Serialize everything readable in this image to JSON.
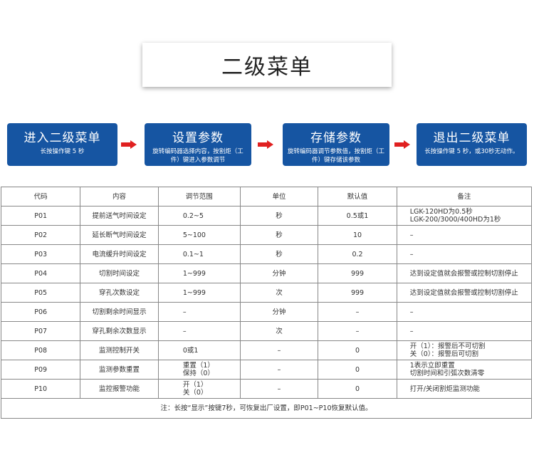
{
  "title": "二级菜单",
  "steps": [
    {
      "title": "进入二级菜单",
      "desc": "长按操作键 5 秒"
    },
    {
      "title": "设置参数",
      "desc": "旋转编码器选择内容，按割炬（工件）键进入参数调节"
    },
    {
      "title": "存储参数",
      "desc": "旋转编码器调节参数值，按割炬（工件）键存储该参数"
    },
    {
      "title": "退出二级菜单",
      "desc": "长按操作键 5 秒，或30秒无动作。"
    }
  ],
  "arrow_color": "#e02020",
  "table": {
    "headers": [
      "代码",
      "内容",
      "调节范围",
      "单位",
      "默认值",
      "备注"
    ],
    "rows": [
      [
        "P01",
        "提前送气时间设定",
        "0.2~5",
        "秒",
        "0.5或1",
        "LGK-120HD为0.5秒\nLGK-200/3000/400HD为1秒"
      ],
      [
        "P02",
        "延长断气时间设定",
        "5~100",
        "秒",
        "10",
        "–"
      ],
      [
        "P03",
        "电流缓升时间设定",
        "0.1~1",
        "秒",
        "0.2",
        "–"
      ],
      [
        "P04",
        "切割时间设定",
        "1~999",
        "分钟",
        "999",
        "达到设定值就会报警或控制切割停止"
      ],
      [
        "P05",
        "穿孔次数设定",
        "1~999",
        "次",
        "999",
        "达到设定值就会报警或控制切割停止"
      ],
      [
        "P06",
        "切割剩余时间显示",
        "–",
        "分钟",
        "–",
        "–"
      ],
      [
        "P07",
        "穿孔剩余次数显示",
        "–",
        "次",
        "–",
        "–"
      ],
      [
        "P08",
        "监测控制开关",
        "0或1",
        "–",
        "0",
        "开（1）：报警后不可切割\n关（0）：报警后可切割"
      ],
      [
        "P09",
        "监测参数重置",
        "重置（1）\n保持（0）",
        "–",
        "0",
        "1表示立即重置\n切割时间和引弧次数清零"
      ],
      [
        "P10",
        "监控报警功能",
        "开（1）\n关（0）",
        "–",
        "0",
        "打开/关闭割炬监测功能"
      ]
    ],
    "note": "注：长按“显示”按键7秒，可恢复出厂设置，即P01~P10恢复默认值。"
  }
}
